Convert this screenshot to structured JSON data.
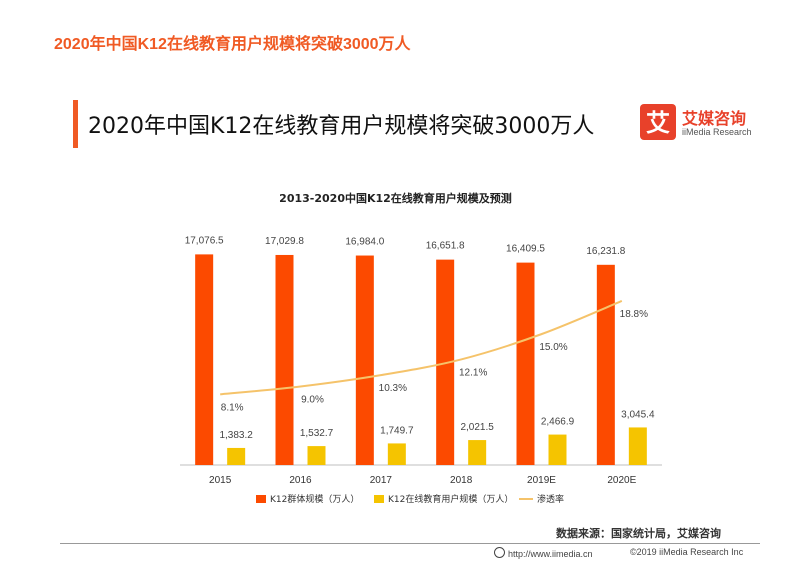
{
  "page": {
    "top_title": "2020年中国K12在线教育用户规模将突破3000万人",
    "main_title": "2020年中国K12在线教育用户规模将突破3000万人",
    "brand": {
      "name": "艾媒咨询",
      "sub": "iiMedia Research",
      "mark": "艾"
    },
    "source": "数据来源：国家统计局，艾媒咨询",
    "footer_url": "http://www.iimedia.cn",
    "footer_copy": "©2019  iiMedia Research  Inc"
  },
  "colors": {
    "accent": "#f05a24",
    "bar_group": "#fc4a00",
    "bar_online": "#f5c400",
    "line_rate": "#f5c36a",
    "brand": "#e8412a"
  },
  "chart_data": {
    "type": "bar",
    "title": "2013-2020中国K12在线教育用户规模及预测",
    "categories": [
      "2015",
      "2016",
      "2017",
      "2018",
      "2019E",
      "2020E"
    ],
    "series": [
      {
        "name": "K12群体规模（万人）",
        "type": "bar",
        "values": [
          17076.5,
          17029.8,
          16984.0,
          16651.8,
          16409.5,
          16231.8
        ],
        "labels": [
          "17,076.5",
          "17,029.8",
          "16,984.0",
          "16,651.8",
          "16,409.5",
          "16,231.8"
        ]
      },
      {
        "name": "K12在线教育用户规模（万人）",
        "type": "bar",
        "values": [
          1383.2,
          1532.7,
          1749.7,
          2021.5,
          2466.9,
          3045.4
        ],
        "labels": [
          "1,383.2",
          "1,532.7",
          "1,749.7",
          "2,021.5",
          "2,466.9",
          "3,045.4"
        ]
      },
      {
        "name": "渗透率",
        "type": "line",
        "values": [
          8.1,
          9.0,
          10.3,
          12.1,
          15.0,
          18.8
        ],
        "labels": [
          "8.1%",
          "9.0%",
          "10.3%",
          "12.1%",
          "15.0%",
          "18.8%"
        ]
      }
    ],
    "ylim": [
      0,
      18000
    ],
    "y2lim": [
      0,
      40
    ],
    "xlabel": "",
    "ylabel": "",
    "legend_position": "bottom",
    "grid": false
  }
}
